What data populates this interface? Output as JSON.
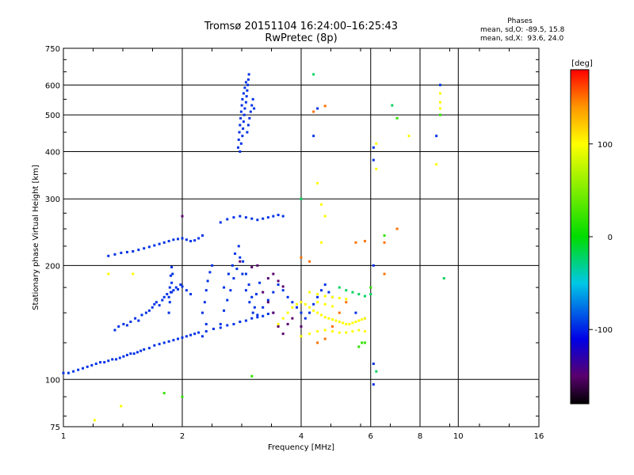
{
  "title": "Tromsø 20151104 16:24:00–16:25:43",
  "subtitle": "RwPretec (8p)",
  "phases": {
    "title": "Phases",
    "line_o": "mean, sd,O: -89.5, 15.8",
    "line_x": "mean, sd,X:  93.6, 24.0"
  },
  "chart_data": {
    "type": "scatter",
    "title": "Tromsø 20151104 16:24:00–16:25:43",
    "subtitle": "RwPretec (8p)",
    "xlabel": "Frequency [MHz]",
    "ylabel": "Stationary phase Virtual Height [km]",
    "x_scale": "log2",
    "y_scale": "log",
    "xlim": [
      1,
      16
    ],
    "ylim": [
      75,
      750
    ],
    "x_ticks": [
      1,
      2,
      4,
      6,
      8,
      10,
      16
    ],
    "x_tick_labels": [
      "1",
      "2",
      "4",
      "6",
      "8",
      "10",
      "16"
    ],
    "y_ticks": [
      75,
      100,
      200,
      300,
      400,
      500,
      600,
      750
    ],
    "y_tick_labels": [
      "75",
      "100",
      "200",
      "300",
      "400",
      "500",
      "600",
      "750"
    ],
    "grid": true,
    "colorbar": {
      "label": "[deg]",
      "range": [
        -180,
        180
      ],
      "ticks": [
        -100,
        0,
        100
      ],
      "tick_labels": [
        "-100",
        "0",
        "100"
      ]
    },
    "series": [
      {
        "phase": -95,
        "points": [
          [
            1.0,
            104
          ],
          [
            1.03,
            104
          ],
          [
            1.06,
            105
          ],
          [
            1.09,
            106
          ],
          [
            1.12,
            107
          ],
          [
            1.15,
            108
          ],
          [
            1.18,
            109
          ],
          [
            1.21,
            110
          ],
          [
            1.24,
            111
          ],
          [
            1.27,
            111
          ],
          [
            1.3,
            112
          ],
          [
            1.33,
            113
          ],
          [
            1.36,
            113
          ],
          [
            1.39,
            114
          ],
          [
            1.42,
            115
          ],
          [
            1.45,
            116
          ],
          [
            1.48,
            117
          ],
          [
            1.51,
            117
          ],
          [
            1.54,
            118
          ],
          [
            1.57,
            119
          ],
          [
            1.6,
            120
          ],
          [
            1.65,
            121
          ],
          [
            1.7,
            123
          ],
          [
            1.75,
            124
          ],
          [
            1.8,
            125
          ],
          [
            1.85,
            126
          ],
          [
            1.9,
            127
          ],
          [
            1.95,
            128
          ],
          [
            2.0,
            129
          ],
          [
            2.05,
            130
          ],
          [
            2.1,
            131
          ],
          [
            2.15,
            132
          ],
          [
            2.2,
            133
          ],
          [
            2.3,
            134
          ],
          [
            2.4,
            136
          ],
          [
            2.5,
            137
          ],
          [
            2.6,
            139
          ],
          [
            2.7,
            140
          ],
          [
            2.8,
            142
          ],
          [
            2.9,
            143
          ],
          [
            3.0,
            145
          ],
          [
            3.1,
            146
          ],
          [
            3.2,
            147
          ],
          [
            3.3,
            149
          ],
          [
            3.4,
            150
          ],
          [
            1.35,
            135
          ],
          [
            1.38,
            138
          ],
          [
            1.42,
            140
          ],
          [
            1.45,
            139
          ],
          [
            1.48,
            142
          ],
          [
            1.52,
            145
          ],
          [
            1.55,
            143
          ],
          [
            1.58,
            148
          ],
          [
            1.62,
            150
          ],
          [
            1.65,
            152
          ],
          [
            1.68,
            155
          ],
          [
            1.7,
            158
          ],
          [
            1.72,
            160
          ],
          [
            1.75,
            157
          ],
          [
            1.78,
            162
          ],
          [
            1.8,
            165
          ],
          [
            1.83,
            168
          ],
          [
            1.85,
            165
          ],
          [
            1.88,
            170
          ],
          [
            1.9,
            172
          ],
          [
            1.93,
            175
          ],
          [
            1.95,
            173
          ],
          [
            1.98,
            178
          ],
          [
            2.0,
            176
          ],
          [
            2.05,
            172
          ],
          [
            2.1,
            168
          ],
          [
            1.85,
            150
          ],
          [
            1.86,
            160
          ],
          [
            1.87,
            170
          ],
          [
            1.88,
            180
          ],
          [
            1.89,
            190
          ],
          [
            1.88,
            198
          ],
          [
            1.87,
            188
          ],
          [
            1.86,
            175
          ],
          [
            2.25,
            150
          ],
          [
            2.28,
            160
          ],
          [
            2.3,
            172
          ],
          [
            2.32,
            182
          ],
          [
            2.35,
            192
          ],
          [
            2.38,
            200
          ],
          [
            2.3,
            140
          ],
          [
            2.25,
            130
          ],
          [
            2.5,
            140
          ],
          [
            2.55,
            152
          ],
          [
            2.6,
            162
          ],
          [
            2.65,
            172
          ],
          [
            2.7,
            185
          ],
          [
            2.75,
            196
          ],
          [
            2.8,
            210
          ],
          [
            2.85,
            205
          ],
          [
            2.9,
            190
          ],
          [
            2.95,
            178
          ],
          [
            3.0,
            165
          ],
          [
            3.05,
            155
          ],
          [
            3.1,
            148
          ],
          [
            2.55,
            175
          ],
          [
            2.62,
            190
          ],
          [
            2.68,
            200
          ],
          [
            2.72,
            215
          ],
          [
            2.78,
            225
          ],
          [
            2.84,
            190
          ],
          [
            2.9,
            172
          ],
          [
            2.96,
            160
          ],
          [
            3.02,
            150
          ],
          [
            3.08,
            168
          ],
          [
            3.14,
            180
          ],
          [
            3.2,
            155
          ],
          [
            3.3,
            162
          ],
          [
            3.4,
            170
          ],
          [
            3.5,
            178
          ],
          [
            3.6,
            172
          ],
          [
            3.7,
            165
          ],
          [
            3.8,
            160
          ],
          [
            3.9,
            155
          ],
          [
            4.0,
            150
          ],
          [
            4.1,
            145
          ],
          [
            4.2,
            150
          ],
          [
            4.3,
            158
          ],
          [
            4.4,
            165
          ],
          [
            4.5,
            172
          ],
          [
            4.6,
            178
          ],
          [
            4.7,
            170
          ],
          [
            4.8,
            165
          ],
          [
            1.3,
            212
          ],
          [
            1.35,
            214
          ],
          [
            1.4,
            216
          ],
          [
            1.45,
            217
          ],
          [
            1.5,
            218
          ],
          [
            1.55,
            220
          ],
          [
            1.6,
            222
          ],
          [
            1.65,
            224
          ],
          [
            1.7,
            226
          ],
          [
            1.75,
            228
          ],
          [
            1.8,
            230
          ],
          [
            1.85,
            232
          ],
          [
            1.9,
            234
          ],
          [
            1.95,
            235
          ],
          [
            2.0,
            236
          ],
          [
            2.05,
            234
          ],
          [
            2.1,
            232
          ],
          [
            2.15,
            233
          ],
          [
            2.2,
            236
          ],
          [
            2.25,
            240
          ],
          [
            2.5,
            260
          ],
          [
            2.6,
            265
          ],
          [
            2.7,
            268
          ],
          [
            2.8,
            270
          ],
          [
            2.9,
            268
          ],
          [
            3.0,
            266
          ],
          [
            3.1,
            264
          ],
          [
            3.2,
            266
          ],
          [
            3.3,
            268
          ],
          [
            3.4,
            270
          ],
          [
            3.5,
            272
          ],
          [
            3.6,
            270
          ],
          [
            2.8,
            400
          ],
          [
            2.82,
            420
          ],
          [
            2.84,
            440
          ],
          [
            2.85,
            460
          ],
          [
            2.86,
            480
          ],
          [
            2.87,
            500
          ],
          [
            2.88,
            520
          ],
          [
            2.9,
            540
          ],
          [
            2.91,
            560
          ],
          [
            2.92,
            580
          ],
          [
            2.93,
            600
          ],
          [
            2.94,
            620
          ],
          [
            2.95,
            640
          ],
          [
            2.9,
            610
          ],
          [
            2.88,
            590
          ],
          [
            2.86,
            570
          ],
          [
            2.84,
            550
          ],
          [
            2.83,
            530
          ],
          [
            2.82,
            510
          ],
          [
            2.81,
            490
          ],
          [
            2.8,
            470
          ],
          [
            2.79,
            450
          ],
          [
            2.78,
            430
          ],
          [
            2.77,
            410
          ],
          [
            2.92,
            450
          ],
          [
            2.94,
            470
          ],
          [
            2.96,
            490
          ],
          [
            2.98,
            510
          ],
          [
            3.0,
            530
          ],
          [
            3.02,
            550
          ],
          [
            3.04,
            520
          ],
          [
            4.3,
            440
          ],
          [
            4.4,
            520
          ],
          [
            6.1,
            380
          ],
          [
            6.1,
            410
          ],
          [
            8.8,
            440
          ],
          [
            9.0,
            600
          ],
          [
            6.1,
            200
          ],
          [
            6.1,
            110
          ],
          [
            6.1,
            97
          ],
          [
            5.5,
            150
          ],
          [
            5.8,
            145
          ]
        ]
      },
      {
        "phase": 100,
        "points": [
          [
            3.5,
            140
          ],
          [
            3.6,
            145
          ],
          [
            3.7,
            150
          ],
          [
            3.8,
            155
          ],
          [
            3.9,
            158
          ],
          [
            4.0,
            160
          ],
          [
            4.1,
            158
          ],
          [
            4.2,
            155
          ],
          [
            4.3,
            152
          ],
          [
            4.4,
            150
          ],
          [
            4.5,
            148
          ],
          [
            4.6,
            146
          ],
          [
            4.7,
            145
          ],
          [
            4.8,
            144
          ],
          [
            4.9,
            143
          ],
          [
            5.0,
            142
          ],
          [
            5.1,
            141
          ],
          [
            5.2,
            140
          ],
          [
            5.3,
            140
          ],
          [
            5.4,
            141
          ],
          [
            5.5,
            142
          ],
          [
            5.6,
            143
          ],
          [
            5.7,
            144
          ],
          [
            5.8,
            145
          ],
          [
            4.0,
            130
          ],
          [
            4.2,
            132
          ],
          [
            4.4,
            134
          ],
          [
            4.6,
            135
          ],
          [
            4.8,
            134
          ],
          [
            5.0,
            133
          ],
          [
            5.2,
            133
          ],
          [
            5.4,
            134
          ],
          [
            5.6,
            135
          ],
          [
            5.8,
            134
          ],
          [
            4.2,
            170
          ],
          [
            4.4,
            168
          ],
          [
            4.6,
            166
          ],
          [
            4.8,
            165
          ],
          [
            5.0,
            164
          ],
          [
            5.2,
            163
          ],
          [
            4.4,
            160
          ],
          [
            4.6,
            158
          ],
          [
            4.8,
            156
          ],
          [
            4.5,
            230
          ],
          [
            4.6,
            270
          ],
          [
            4.5,
            290
          ],
          [
            4.4,
            330
          ],
          [
            6.2,
            360
          ],
          [
            6.2,
            420
          ],
          [
            7.5,
            440
          ],
          [
            9.0,
            570
          ],
          [
            9.0,
            540
          ],
          [
            9.0,
            520
          ],
          [
            8.8,
            370
          ],
          [
            1.3,
            190
          ],
          [
            1.5,
            190
          ],
          [
            1.4,
            85
          ],
          [
            1.2,
            78
          ]
        ]
      },
      {
        "phase": 150,
        "points": [
          [
            4.4,
            125
          ],
          [
            4.6,
            128
          ],
          [
            4.8,
            138
          ],
          [
            5.0,
            150
          ],
          [
            5.2,
            160
          ],
          [
            4.6,
            528
          ],
          [
            4.3,
            510
          ],
          [
            5.5,
            230
          ],
          [
            5.8,
            232
          ],
          [
            6.5,
            190
          ],
          [
            6.5,
            230
          ],
          [
            7.0,
            250
          ],
          [
            4.0,
            210
          ],
          [
            4.2,
            205
          ]
        ]
      },
      {
        "phase": 20,
        "points": [
          [
            5.8,
            125
          ],
          [
            6.0,
            175
          ],
          [
            6.5,
            240
          ],
          [
            7.0,
            490
          ],
          [
            9.0,
            500
          ],
          [
            1.8,
            92
          ],
          [
            2.0,
            90
          ],
          [
            3.0,
            102
          ],
          [
            5.6,
            122
          ],
          [
            5.7,
            125
          ]
        ]
      },
      {
        "phase": -20,
        "points": [
          [
            6.8,
            530
          ],
          [
            6.2,
            105
          ],
          [
            5.0,
            175
          ],
          [
            5.2,
            172
          ],
          [
            5.4,
            170
          ],
          [
            5.6,
            168
          ],
          [
            5.8,
            166
          ],
          [
            6.0,
            168
          ],
          [
            9.2,
            185
          ],
          [
            4.3,
            640
          ],
          [
            4.0,
            300
          ]
        ]
      },
      {
        "phase": -150,
        "points": [
          [
            3.3,
            185
          ],
          [
            3.4,
            190
          ],
          [
            3.5,
            182
          ],
          [
            3.6,
            176
          ],
          [
            3.2,
            170
          ],
          [
            3.3,
            160
          ],
          [
            3.4,
            150
          ],
          [
            3.5,
            138
          ],
          [
            3.6,
            132
          ],
          [
            3.7,
            140
          ],
          [
            3.8,
            145
          ],
          [
            4.0,
            138
          ],
          [
            3.1,
            200
          ],
          [
            2.0,
            270
          ],
          [
            2.8,
            205
          ],
          [
            3.0,
            198
          ]
        ]
      }
    ]
  }
}
